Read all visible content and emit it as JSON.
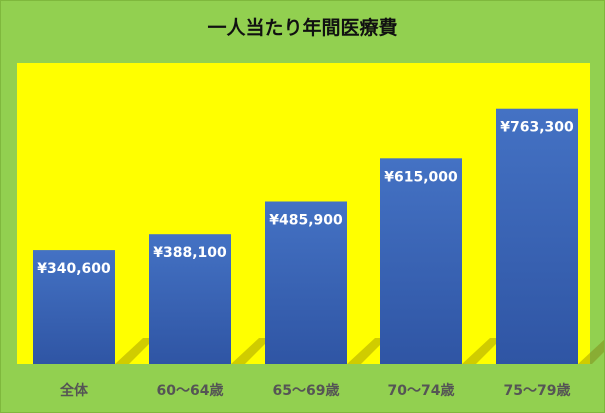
{
  "chart_data": {
    "type": "bar",
    "title": "一人当たり年間医療費",
    "categories": [
      "全体",
      "60〜64歳",
      "65〜69歳",
      "70〜74歳",
      "75〜79歳"
    ],
    "values": [
      340600,
      388100,
      485900,
      615000,
      763300
    ],
    "value_labels": [
      "¥340,600",
      "¥388,100",
      "¥485,900",
      "¥615,000",
      "¥763,300"
    ],
    "ylim": [
      0,
      900000
    ],
    "grid": false,
    "legend": "none",
    "colors": {
      "background": "#92d050",
      "plot_area": "#ffff00",
      "bar_top": "#4472c4",
      "bar_bottom": "#2f55a4",
      "label": "#ffffff",
      "axis_text": "#555555"
    }
  }
}
